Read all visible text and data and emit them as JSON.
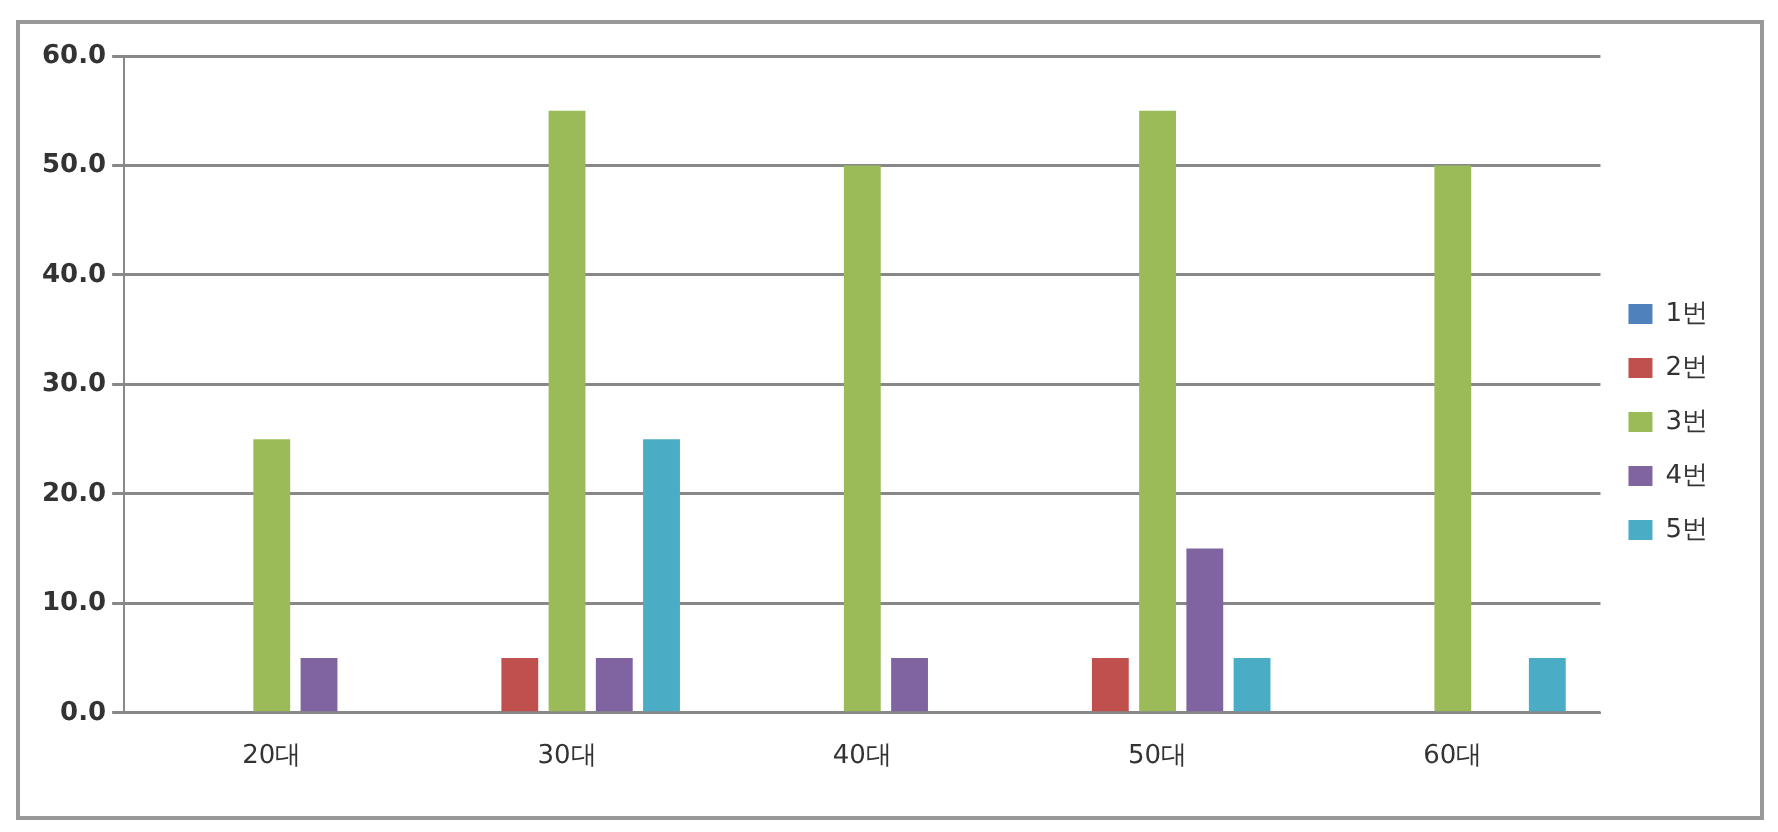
{
  "chart_data": {
    "type": "bar",
    "categories": [
      "20대",
      "30대",
      "40대",
      "50대",
      "60대"
    ],
    "series": [
      {
        "name": "1번",
        "color": "#4f81bd",
        "values": [
          0,
          0,
          0,
          0,
          0
        ]
      },
      {
        "name": "2번",
        "color": "#c0504d",
        "values": [
          0,
          5,
          0,
          5,
          0
        ]
      },
      {
        "name": "3번",
        "color": "#9bbb59",
        "values": [
          25,
          55,
          50,
          55,
          50
        ]
      },
      {
        "name": "4번",
        "color": "#8064a2",
        "values": [
          5,
          5,
          5,
          15,
          0
        ]
      },
      {
        "name": "5번",
        "color": "#4bacc6",
        "values": [
          0,
          25,
          0,
          5,
          5
        ]
      }
    ],
    "ylim": [
      0,
      60
    ],
    "yticks": [
      {
        "value": 0,
        "label": "0.0"
      },
      {
        "value": 10,
        "label": "10.0"
      },
      {
        "value": 20,
        "label": "20.0"
      },
      {
        "value": 30,
        "label": "30.0"
      },
      {
        "value": 40,
        "label": "40.0"
      },
      {
        "value": 50,
        "label": "50.0"
      },
      {
        "value": 60,
        "label": "60.0"
      }
    ],
    "grid": "y",
    "legend": "right"
  }
}
